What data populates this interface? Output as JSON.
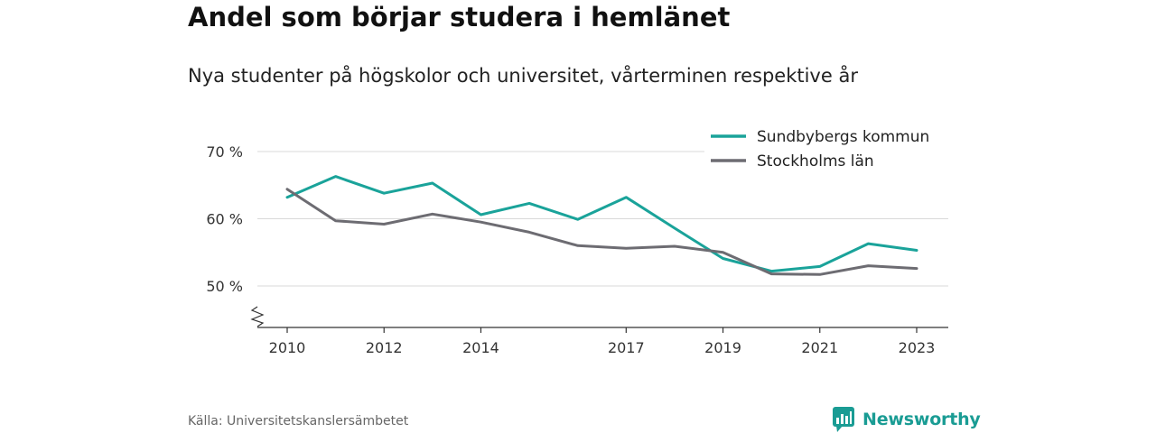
{
  "header": {
    "title": "Andel som börjar studera i hemlänet",
    "subtitle": "Nya studenter på högskolor och universitet, vårterminen respektive år"
  },
  "footer": {
    "source": "Källa: Universitetskanslersämbetet",
    "brand": "Newsworthy"
  },
  "colors": {
    "sundbyberg": "#1aa39a",
    "stockholm": "#6d6c72",
    "grid": "#d9d9d9",
    "axis": "#333333",
    "brand": "#1a9c94"
  },
  "chart_data": {
    "type": "line",
    "title": "Andel som börjar studera i hemlänet",
    "subtitle": "Nya studenter på högskolor och universitet, vårterminen respektive år",
    "x": [
      2010,
      2011,
      2012,
      2013,
      2014,
      2015,
      2016,
      2017,
      2018,
      2019,
      2020,
      2021,
      2022,
      2023
    ],
    "x_ticks": [
      "2010",
      "2012",
      "2014",
      "2017",
      "2019",
      "2021",
      "2023"
    ],
    "y_ticks": [
      "50 %",
      "60 %",
      "70 %"
    ],
    "ylim": [
      50,
      70
    ],
    "y_axis_break": true,
    "grid": true,
    "legend_position": "top-right",
    "series": [
      {
        "name": "Sundbybergs kommun",
        "color": "#1aa39a",
        "values": [
          63.2,
          66.3,
          63.8,
          65.3,
          60.6,
          62.3,
          59.9,
          63.2,
          58.6,
          54.1,
          52.2,
          52.9,
          56.3,
          55.3
        ]
      },
      {
        "name": "Stockholms län",
        "color": "#6d6c72",
        "values": [
          64.4,
          59.7,
          59.2,
          60.7,
          59.5,
          58.0,
          56.0,
          55.6,
          55.9,
          55.0,
          51.8,
          51.7,
          53.0,
          52.6
        ]
      }
    ]
  }
}
